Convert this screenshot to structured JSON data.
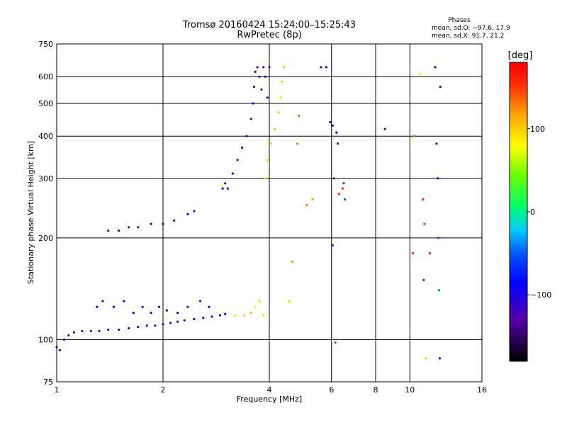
{
  "chart_data": {
    "type": "scatter",
    "title": "Tromsø 20160424 15:24:00–15:25:43",
    "subtitle": "RwPretec (8p)",
    "xlabel": "Frequency [MHz]",
    "ylabel": "Stationary phase Virtual Height [km]",
    "x_scale": "log",
    "y_scale": "log",
    "xlim": [
      1,
      16
    ],
    "ylim": [
      75,
      750
    ],
    "x_ticks": [
      1,
      2,
      4,
      6,
      8,
      10,
      16
    ],
    "x_tick_labels": [
      "1",
      "2",
      "4",
      "6",
      "8",
      "10",
      "16"
    ],
    "y_ticks": [
      75,
      100,
      200,
      300,
      400,
      500,
      600,
      750
    ],
    "y_tick_labels": [
      "75",
      "100",
      "200",
      "300",
      "400",
      "500",
      "600",
      "750"
    ],
    "grid": true,
    "stats": {
      "heading": "Phases",
      "line1": "mean, sd,O: −97.6, 17.9",
      "line2": "mean, sd,X:  91.7, 21.2"
    },
    "colorbar": {
      "label": "[deg]",
      "min": -180,
      "max": 180,
      "ticks": [
        100,
        0,
        -100
      ],
      "tick_labels": [
        "100",
        "0",
        "−100"
      ]
    },
    "points": [
      [
        1.0,
        95,
        -110
      ],
      [
        1.02,
        93,
        -120
      ],
      [
        1.05,
        100,
        -110
      ],
      [
        1.08,
        103,
        -120
      ],
      [
        1.12,
        105,
        -110
      ],
      [
        1.18,
        106,
        -115
      ],
      [
        1.25,
        106,
        -110
      ],
      [
        1.32,
        106,
        -120
      ],
      [
        1.4,
        107,
        -110
      ],
      [
        1.5,
        107,
        -115
      ],
      [
        1.6,
        108,
        -110
      ],
      [
        1.7,
        109,
        -120
      ],
      [
        1.8,
        110,
        -110
      ],
      [
        1.9,
        110,
        -105
      ],
      [
        2.0,
        111,
        -110
      ],
      [
        2.1,
        112,
        -115
      ],
      [
        2.2,
        113,
        -110
      ],
      [
        2.3,
        114,
        -120
      ],
      [
        2.45,
        115,
        -110
      ],
      [
        2.6,
        116,
        -115
      ],
      [
        2.75,
        117,
        -110
      ],
      [
        2.9,
        118,
        -120
      ],
      [
        3.0,
        119,
        -110
      ],
      [
        1.3,
        125,
        -90
      ],
      [
        1.35,
        130,
        -80
      ],
      [
        1.45,
        125,
        -95
      ],
      [
        1.55,
        130,
        -85
      ],
      [
        1.65,
        120,
        -90
      ],
      [
        1.75,
        125,
        -95
      ],
      [
        1.85,
        120,
        -80
      ],
      [
        1.95,
        125,
        -90
      ],
      [
        2.05,
        122,
        -95
      ],
      [
        2.2,
        120,
        -90
      ],
      [
        2.35,
        125,
        -85
      ],
      [
        2.55,
        130,
        -80
      ],
      [
        2.7,
        125,
        -95
      ],
      [
        1.4,
        210,
        -110
      ],
      [
        1.5,
        210,
        -120
      ],
      [
        1.6,
        215,
        -110
      ],
      [
        1.7,
        215,
        -115
      ],
      [
        1.85,
        220,
        -110
      ],
      [
        2.0,
        220,
        -120
      ],
      [
        2.15,
        225,
        -110
      ],
      [
        2.35,
        235,
        -90
      ],
      [
        2.45,
        240,
        -80
      ],
      [
        2.95,
        280,
        -110
      ],
      [
        3.0,
        290,
        -120
      ],
      [
        3.05,
        280,
        -110
      ],
      [
        3.15,
        310,
        -110
      ],
      [
        3.25,
        340,
        -115
      ],
      [
        3.35,
        370,
        -110
      ],
      [
        3.45,
        400,
        -110
      ],
      [
        3.55,
        450,
        -120
      ],
      [
        3.6,
        500,
        -110
      ],
      [
        3.62,
        560,
        -115
      ],
      [
        3.65,
        620,
        -110
      ],
      [
        3.7,
        640,
        -120
      ],
      [
        3.75,
        600,
        -110
      ],
      [
        3.8,
        550,
        -115
      ],
      [
        3.85,
        640,
        -120
      ],
      [
        3.9,
        600,
        -110
      ],
      [
        3.95,
        520,
        -115
      ],
      [
        4.0,
        640,
        -110
      ],
      [
        3.2,
        118,
        95
      ],
      [
        3.4,
        118,
        100
      ],
      [
        3.55,
        120,
        110
      ],
      [
        3.65,
        125,
        90
      ],
      [
        3.75,
        130,
        100
      ],
      [
        3.85,
        118,
        95
      ],
      [
        3.9,
        300,
        100
      ],
      [
        3.95,
        340,
        95
      ],
      [
        4.05,
        380,
        100
      ],
      [
        4.15,
        420,
        110
      ],
      [
        4.25,
        470,
        100
      ],
      [
        4.3,
        520,
        95
      ],
      [
        4.35,
        580,
        100
      ],
      [
        4.4,
        640,
        110
      ],
      [
        4.55,
        130,
        100
      ],
      [
        4.65,
        170,
        120
      ],
      [
        4.8,
        380,
        130
      ],
      [
        4.85,
        460,
        140
      ],
      [
        5.1,
        250,
        130
      ],
      [
        5.3,
        260,
        120
      ],
      [
        5.6,
        640,
        -120
      ],
      [
        5.8,
        640,
        -110
      ],
      [
        5.95,
        440,
        -110
      ],
      [
        6.05,
        430,
        -100
      ],
      [
        6.2,
        410,
        -90
      ],
      [
        6.25,
        380,
        -80
      ],
      [
        6.1,
        300,
        -70
      ],
      [
        6.3,
        270,
        160
      ],
      [
        6.45,
        280,
        160
      ],
      [
        6.5,
        290,
        -60
      ],
      [
        6.55,
        260,
        -50
      ],
      [
        6.05,
        190,
        -60
      ],
      [
        6.15,
        98,
        -40
      ],
      [
        8.5,
        420,
        -110
      ],
      [
        10.2,
        180,
        150
      ],
      [
        10.3,
        400,
        140
      ],
      [
        10.7,
        610,
        90
      ],
      [
        10.9,
        260,
        160
      ],
      [
        11.0,
        220,
        150
      ],
      [
        10.95,
        150,
        -60
      ],
      [
        11.1,
        88,
        100
      ],
      [
        11.4,
        180,
        160
      ],
      [
        11.8,
        640,
        -110
      ],
      [
        11.9,
        380,
        -100
      ],
      [
        12.0,
        300,
        -80
      ],
      [
        12.05,
        200,
        -50
      ],
      [
        12.1,
        140,
        -40
      ],
      [
        12.15,
        88,
        -100
      ],
      [
        12.2,
        560,
        -120
      ]
    ]
  }
}
